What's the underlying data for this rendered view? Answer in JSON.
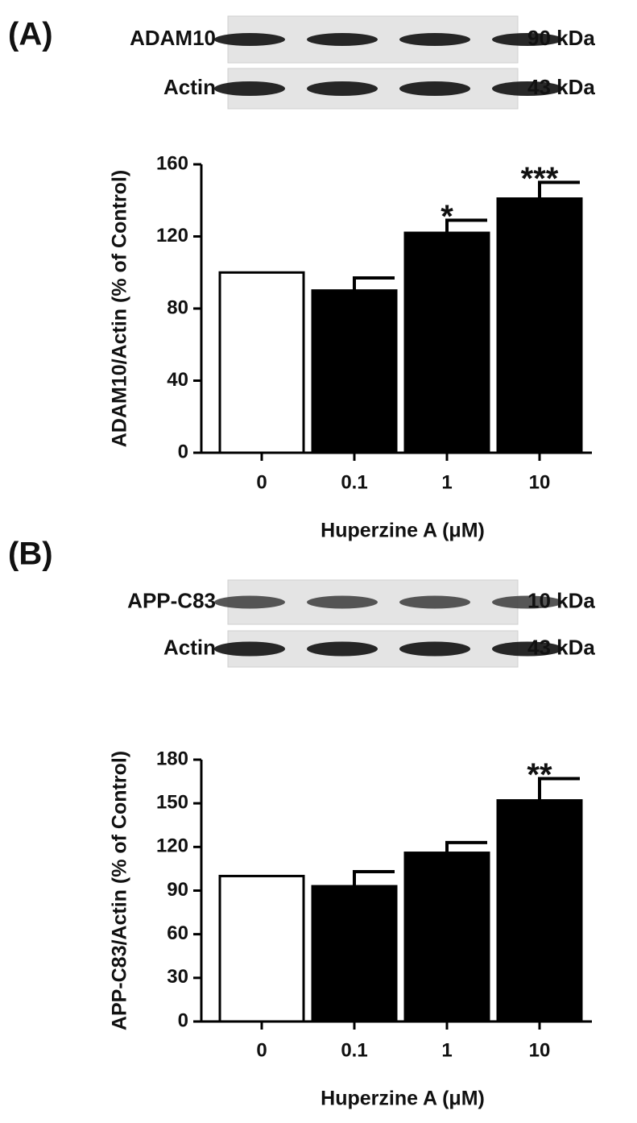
{
  "chart_data": [
    {
      "type": "bar",
      "panel_label": "(A)",
      "blot_rows": [
        {
          "label": "ADAM10",
          "size": "90 kDa"
        },
        {
          "label": "Actin",
          "size": "43 kDa"
        }
      ],
      "categories": [
        "0",
        "0.1",
        "1",
        "10"
      ],
      "values": [
        100,
        90,
        122,
        141
      ],
      "errors": [
        null,
        7,
        7,
        9
      ],
      "significance": [
        null,
        null,
        "*",
        "***"
      ],
      "colors": [
        "#ffffff",
        "#000000",
        "#000000",
        "#000000"
      ],
      "ylim": [
        0,
        160
      ],
      "yticks": [
        0,
        40,
        80,
        120,
        160
      ],
      "ylabel": "ADAM10/Actin (% of Control)",
      "xlabel": "Huperzine A (μM)"
    },
    {
      "type": "bar",
      "panel_label": "(B)",
      "blot_rows": [
        {
          "label": "APP-C83",
          "size": "10 kDa"
        },
        {
          "label": "Actin",
          "size": "43 kDa"
        }
      ],
      "categories": [
        "0",
        "0.1",
        "1",
        "10"
      ],
      "values": [
        100,
        93,
        116,
        152
      ],
      "errors": [
        null,
        10,
        7,
        15
      ],
      "significance": [
        null,
        null,
        null,
        "**"
      ],
      "colors": [
        "#ffffff",
        "#000000",
        "#000000",
        "#000000"
      ],
      "ylim": [
        0,
        180
      ],
      "yticks": [
        0,
        30,
        60,
        90,
        120,
        150,
        180
      ],
      "ylabel": "APP-C83/Actin (% of Control)",
      "xlabel": "Huperzine A (μM)"
    }
  ]
}
